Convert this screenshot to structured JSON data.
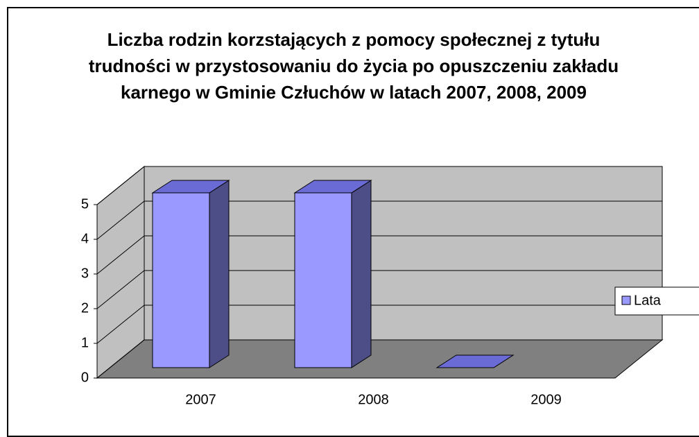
{
  "chart_data": {
    "type": "bar3d",
    "title": "Liczba rodzin korzstających z pomocy społecznej z tytułu trudności w przystosowaniu do życia po opuszczeniu zakładu karnego w Gminie Człuchów w latach 2007, 2008, 2009",
    "categories": [
      "2007",
      "2008",
      "2009"
    ],
    "series": [
      {
        "name": "Lata",
        "color": "#9999ff",
        "values": [
          5,
          5,
          0
        ]
      }
    ],
    "ylim": [
      0,
      5
    ],
    "yticks": [
      0,
      1,
      2,
      3,
      4,
      5
    ],
    "grid": true,
    "legend": "right"
  }
}
